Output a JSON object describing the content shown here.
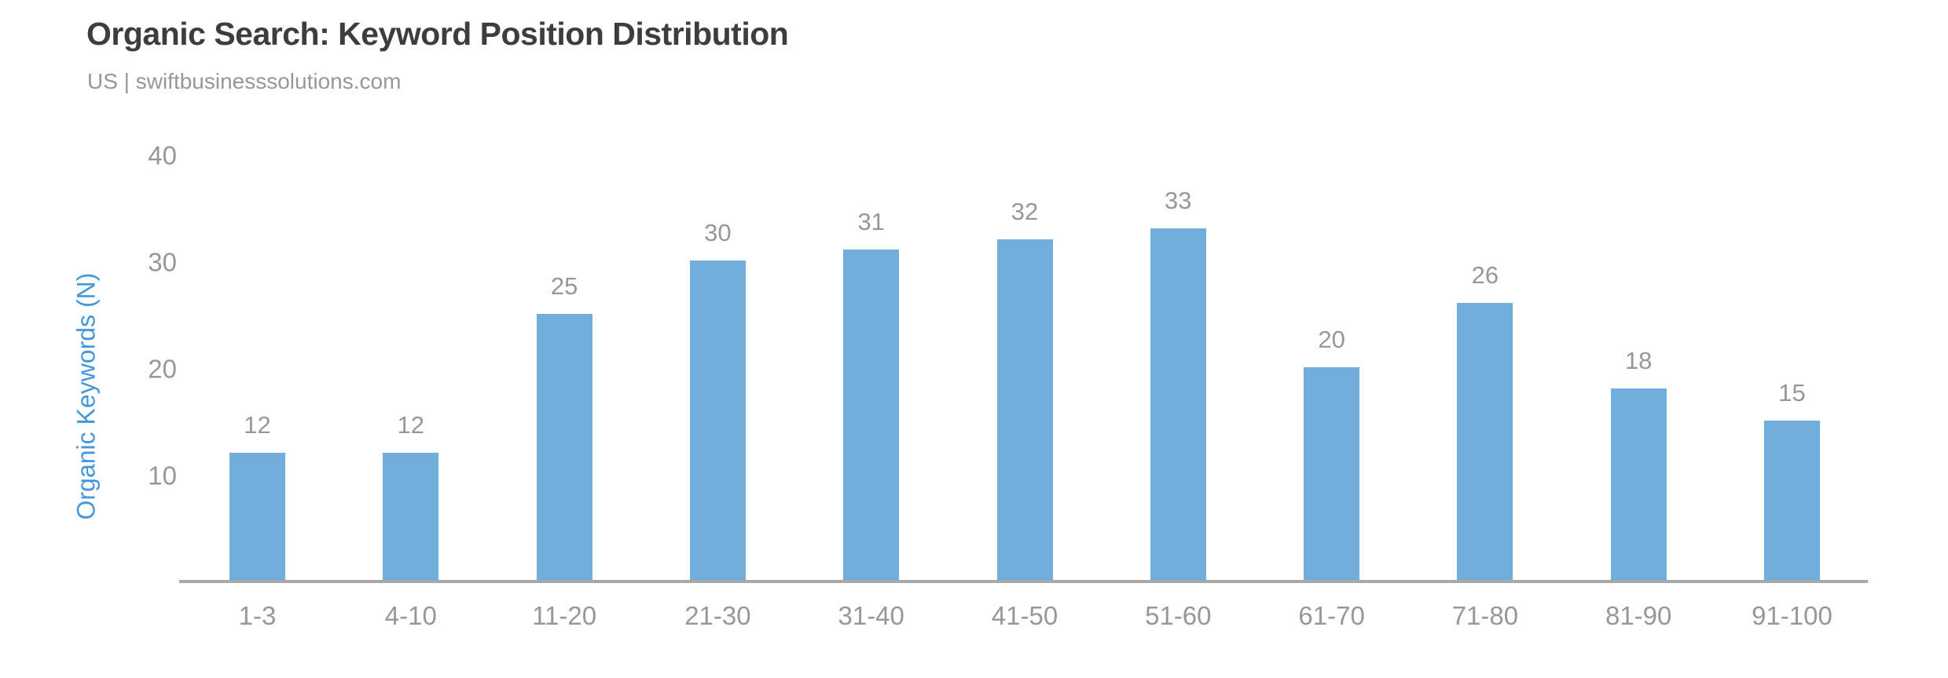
{
  "header": {
    "title": "Organic Search: Keyword Position Distribution",
    "subtitle": "US | swiftbusinesssolutions.com"
  },
  "chart_data": {
    "type": "bar",
    "title": "Organic Search: Keyword Position Distribution",
    "subtitle": "US | swiftbusinesssolutions.com",
    "xlabel": "",
    "ylabel": "Organic Keywords (N)",
    "categories": [
      "1-3",
      "4-10",
      "11-20",
      "21-30",
      "31-40",
      "41-50",
      "51-60",
      "61-70",
      "71-80",
      "81-90",
      "91-100"
    ],
    "values": [
      12,
      12,
      25,
      30,
      31,
      32,
      33,
      20,
      26,
      18,
      15
    ],
    "yticks": [
      40,
      30,
      20,
      10
    ],
    "ylim": [
      0,
      44
    ],
    "grid": false,
    "legend_position": "none",
    "value_labels_shown": true
  },
  "colors": {
    "bar": "#72aedc",
    "ylabel_text": "#4497db",
    "title_text": "#3d3d3d",
    "muted_text": "#979797",
    "axis_line": "#a8a8a8"
  }
}
